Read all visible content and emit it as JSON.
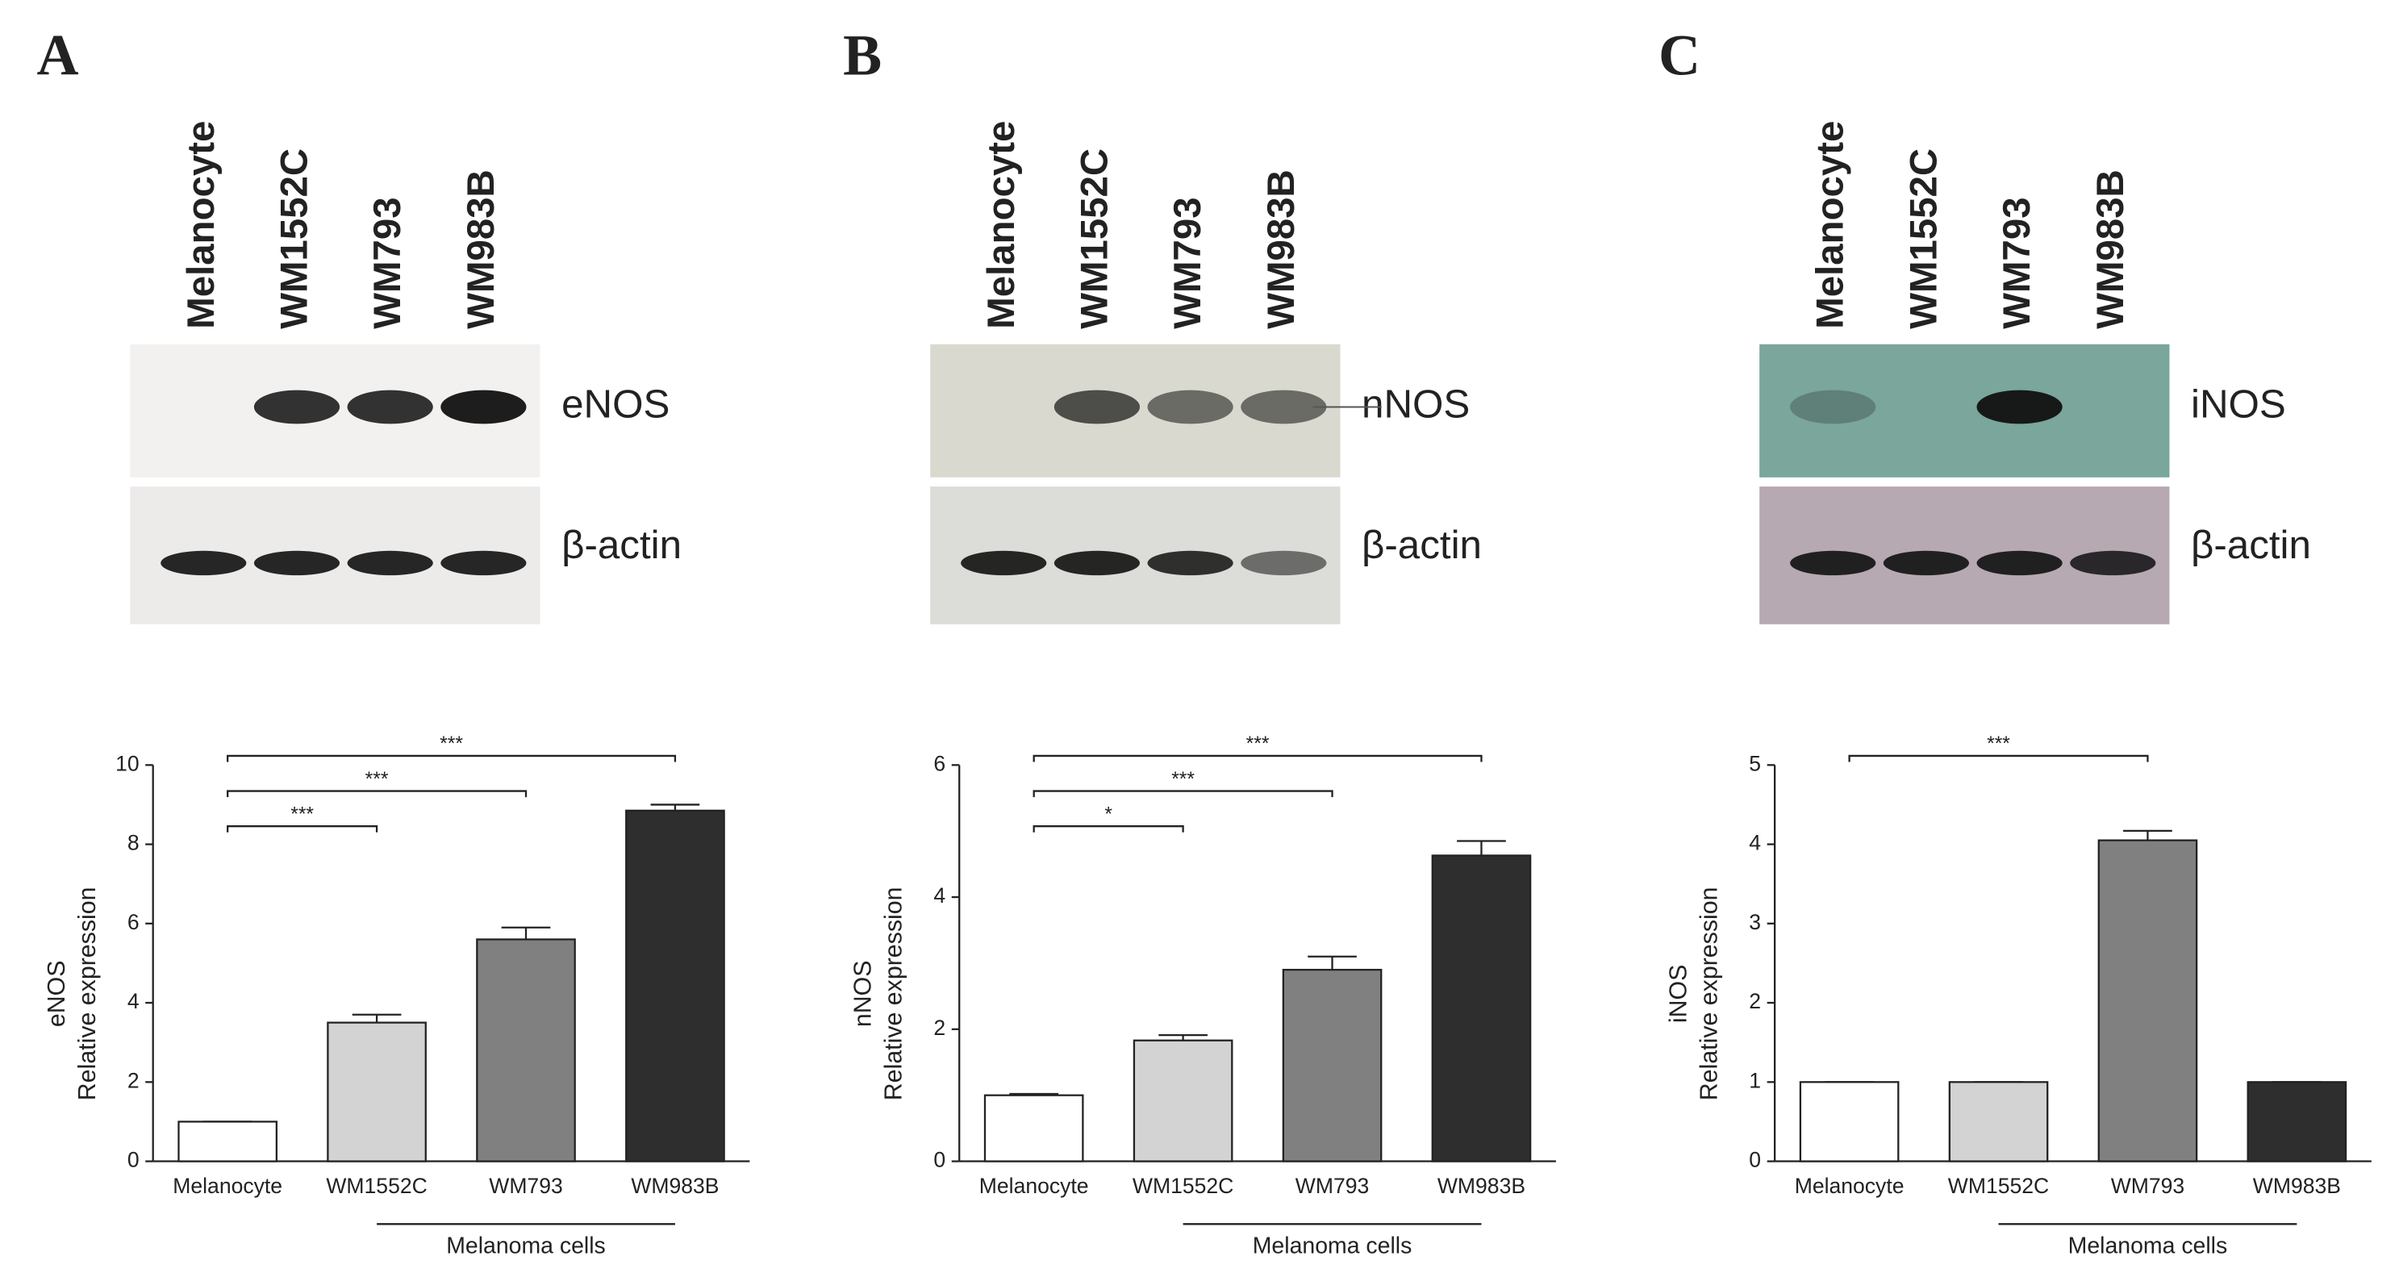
{
  "chart_data": [
    {
      "type": "bar",
      "panel": "A",
      "blots": [
        "eNOS",
        "β-actin"
      ],
      "ylabel": [
        "eNOS",
        "Relative expression"
      ],
      "categories": [
        "Melanocyte",
        "WM1552C",
        "WM793",
        "WM983B"
      ],
      "values": [
        1,
        3.5,
        5.6,
        8.85
      ],
      "errors": [
        0,
        0.2,
        0.3,
        0.15
      ],
      "colors": [
        "#ffffff",
        "#d3d3d3",
        "#808080",
        "#2e2e2e"
      ],
      "ylim": [
        0,
        10
      ],
      "yticks": [
        0,
        2,
        4,
        6,
        8,
        10
      ],
      "significance": [
        {
          "from": 0,
          "to": 1,
          "label": "***"
        },
        {
          "from": 0,
          "to": 2,
          "label": "***"
        },
        {
          "from": 0,
          "to": 3,
          "label": "***"
        }
      ],
      "group_label": "Melanoma cells"
    },
    {
      "type": "bar",
      "panel": "B",
      "blots": [
        "nNOS",
        "β-actin"
      ],
      "ylabel": [
        "nNOS",
        "Relative expression"
      ],
      "categories": [
        "Melanocyte",
        "WM1552C",
        "WM793",
        "WM983B"
      ],
      "values": [
        1,
        1.83,
        2.9,
        4.63
      ],
      "errors": [
        0.02,
        0.08,
        0.2,
        0.22
      ],
      "colors": [
        "#ffffff",
        "#d3d3d3",
        "#808080",
        "#2e2e2e"
      ],
      "ylim": [
        0,
        6
      ],
      "yticks": [
        0,
        2,
        4,
        6
      ],
      "significance": [
        {
          "from": 0,
          "to": 1,
          "label": "*"
        },
        {
          "from": 0,
          "to": 2,
          "label": "***"
        },
        {
          "from": 0,
          "to": 3,
          "label": "***"
        }
      ],
      "group_label": "Melanoma cells"
    },
    {
      "type": "bar",
      "panel": "C",
      "blots": [
        "iNOS",
        "β-actin"
      ],
      "ylabel": [
        "iNOS",
        "Relative expression"
      ],
      "categories": [
        "Melanocyte",
        "WM1552C",
        "WM793",
        "WM983B"
      ],
      "values": [
        1,
        1,
        4.05,
        1
      ],
      "errors": [
        0,
        0,
        0.12,
        0
      ],
      "colors": [
        "#ffffff",
        "#d3d3d3",
        "#808080",
        "#2e2e2e"
      ],
      "ylim": [
        0,
        5
      ],
      "yticks": [
        0,
        1,
        2,
        3,
        4,
        5
      ],
      "significance": [
        {
          "from": 0,
          "to": 2,
          "label": "***"
        }
      ],
      "group_label": "Melanoma cells"
    }
  ]
}
